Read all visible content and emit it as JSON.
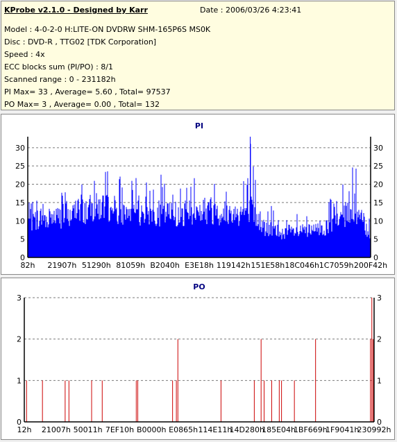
{
  "header": {
    "title": "KProbe v2.1.0 - Designed by Karr",
    "date": "Date : 2006/03/26 4:23:41",
    "model": "Model : 4-0-2-0 H:LITE-ON DVDRW SHM-165P6S MS0K",
    "disc": "Disc : DVD-R , TTG02 [TDK Corporation]",
    "speed": "Speed : 4x",
    "ecc": "ECC blocks sum (PI/PO) : 8/1",
    "range": "Scanned range : 0 - 231182h",
    "pi_stats": "PI Max= 33 , Average= 5.60 , Total= 97537",
    "po_stats": "PO Max= 3 , Average= 0.00 , Total= 132"
  },
  "colors": {
    "pi": "#0000ff",
    "po": "#cc0000",
    "title": "#000080"
  },
  "chart_data": [
    {
      "type": "bar",
      "title": "PI",
      "ylim": [
        0,
        33
      ],
      "yticks": [
        0,
        5,
        10,
        15,
        20,
        25,
        30
      ],
      "xlim": [
        0,
        231182
      ],
      "xtick_labels": [
        "82h",
        "21907h",
        "51290h",
        "81059h",
        "B2040h",
        "E3E18h",
        "119142h",
        "151E58h",
        "18C046h",
        "1C7059h",
        "200F42h"
      ],
      "grid": true,
      "envelope_x": [
        0,
        10000,
        20000,
        30000,
        40000,
        50000,
        60000,
        70000,
        80000,
        90000,
        100000,
        110000,
        120000,
        130000,
        140000,
        150000,
        160000,
        170000,
        180000,
        190000,
        200000,
        210000,
        220000,
        231182
      ],
      "envelope_max": [
        16,
        17,
        18,
        21,
        23,
        25,
        23,
        22,
        21,
        23,
        21,
        22,
        24,
        21,
        22,
        33,
        16,
        13,
        12,
        13,
        17,
        18,
        26,
        15
      ],
      "envelope_typ": [
        10,
        11,
        11,
        12,
        13,
        14,
        13,
        12,
        12,
        12,
        12,
        12,
        13,
        12,
        12,
        13,
        8,
        7,
        7,
        7,
        8,
        10,
        14,
        6
      ]
    },
    {
      "type": "bar",
      "title": "PO",
      "ylim": [
        0,
        3
      ],
      "yticks": [
        0,
        1,
        2,
        3
      ],
      "xlim": [
        0,
        231182
      ],
      "xtick_labels": [
        "12h",
        "21007h",
        "50011h",
        "7EF10h",
        "B0000h",
        "E0865h",
        "114E11h",
        "14D280h",
        "185E04h",
        "1BF669h",
        "1F9041h",
        "230992h"
      ],
      "grid": true,
      "x": [
        1500,
        12000,
        27000,
        29500,
        44500,
        51500,
        74000,
        75000,
        98000,
        100500,
        101500,
        130000,
        152000,
        156500,
        158500,
        163500,
        168500,
        170000,
        178500,
        192500,
        228800,
        229700,
        230500
      ],
      "values": [
        1,
        1,
        1,
        1,
        1,
        1,
        1,
        1,
        1,
        1,
        2,
        1,
        1,
        2,
        1,
        1,
        1,
        1,
        1,
        2,
        2,
        3,
        2
      ]
    }
  ]
}
